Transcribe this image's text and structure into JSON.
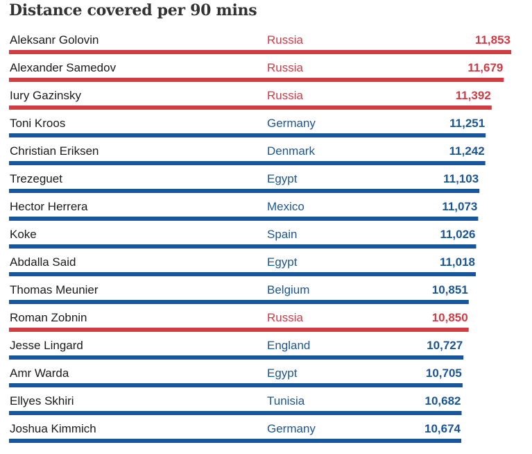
{
  "colors": {
    "russia": "#d03b44",
    "other": "#1b5596"
  },
  "chart_data": {
    "type": "bar",
    "orientation": "horizontal",
    "title": "Distance covered per 90 mins",
    "xlim": [
      0,
      11853
    ],
    "rows": [
      {
        "player": "Aleksanr Golovin",
        "country": "Russia",
        "value": 11853,
        "label": "11,853"
      },
      {
        "player": "Alexander Samedov",
        "country": "Russia",
        "value": 11679,
        "label": "11,679"
      },
      {
        "player": "Iury Gazinsky",
        "country": "Russia",
        "value": 11392,
        "label": "11,392"
      },
      {
        "player": "Toni Kroos",
        "country": "Germany",
        "value": 11251,
        "label": "11,251"
      },
      {
        "player": "Christian Eriksen",
        "country": "Denmark",
        "value": 11242,
        "label": "11,242"
      },
      {
        "player": "Trezeguet",
        "country": "Egypt",
        "value": 11103,
        "label": "11,103"
      },
      {
        "player": "Hector Herrera",
        "country": "Mexico",
        "value": 11073,
        "label": "11,073"
      },
      {
        "player": "Koke",
        "country": "Spain",
        "value": 11026,
        "label": "11,026"
      },
      {
        "player": "Abdalla Said",
        "country": "Egypt",
        "value": 11018,
        "label": "11,018"
      },
      {
        "player": "Thomas Meunier",
        "country": "Belgium",
        "value": 10851,
        "label": "10,851"
      },
      {
        "player": "Roman Zobnin",
        "country": "Russia",
        "value": 10850,
        "label": "10,850"
      },
      {
        "player": "Jesse Lingard",
        "country": "England",
        "value": 10727,
        "label": "10,727"
      },
      {
        "player": "Amr Warda",
        "country": "Egypt",
        "value": 10705,
        "label": "10,705"
      },
      {
        "player": "Ellyes Skhiri",
        "country": "Tunisia",
        "value": 10682,
        "label": "10,682"
      },
      {
        "player": "Joshua Kimmich",
        "country": "Germany",
        "value": 10674,
        "label": "10,674"
      }
    ]
  }
}
